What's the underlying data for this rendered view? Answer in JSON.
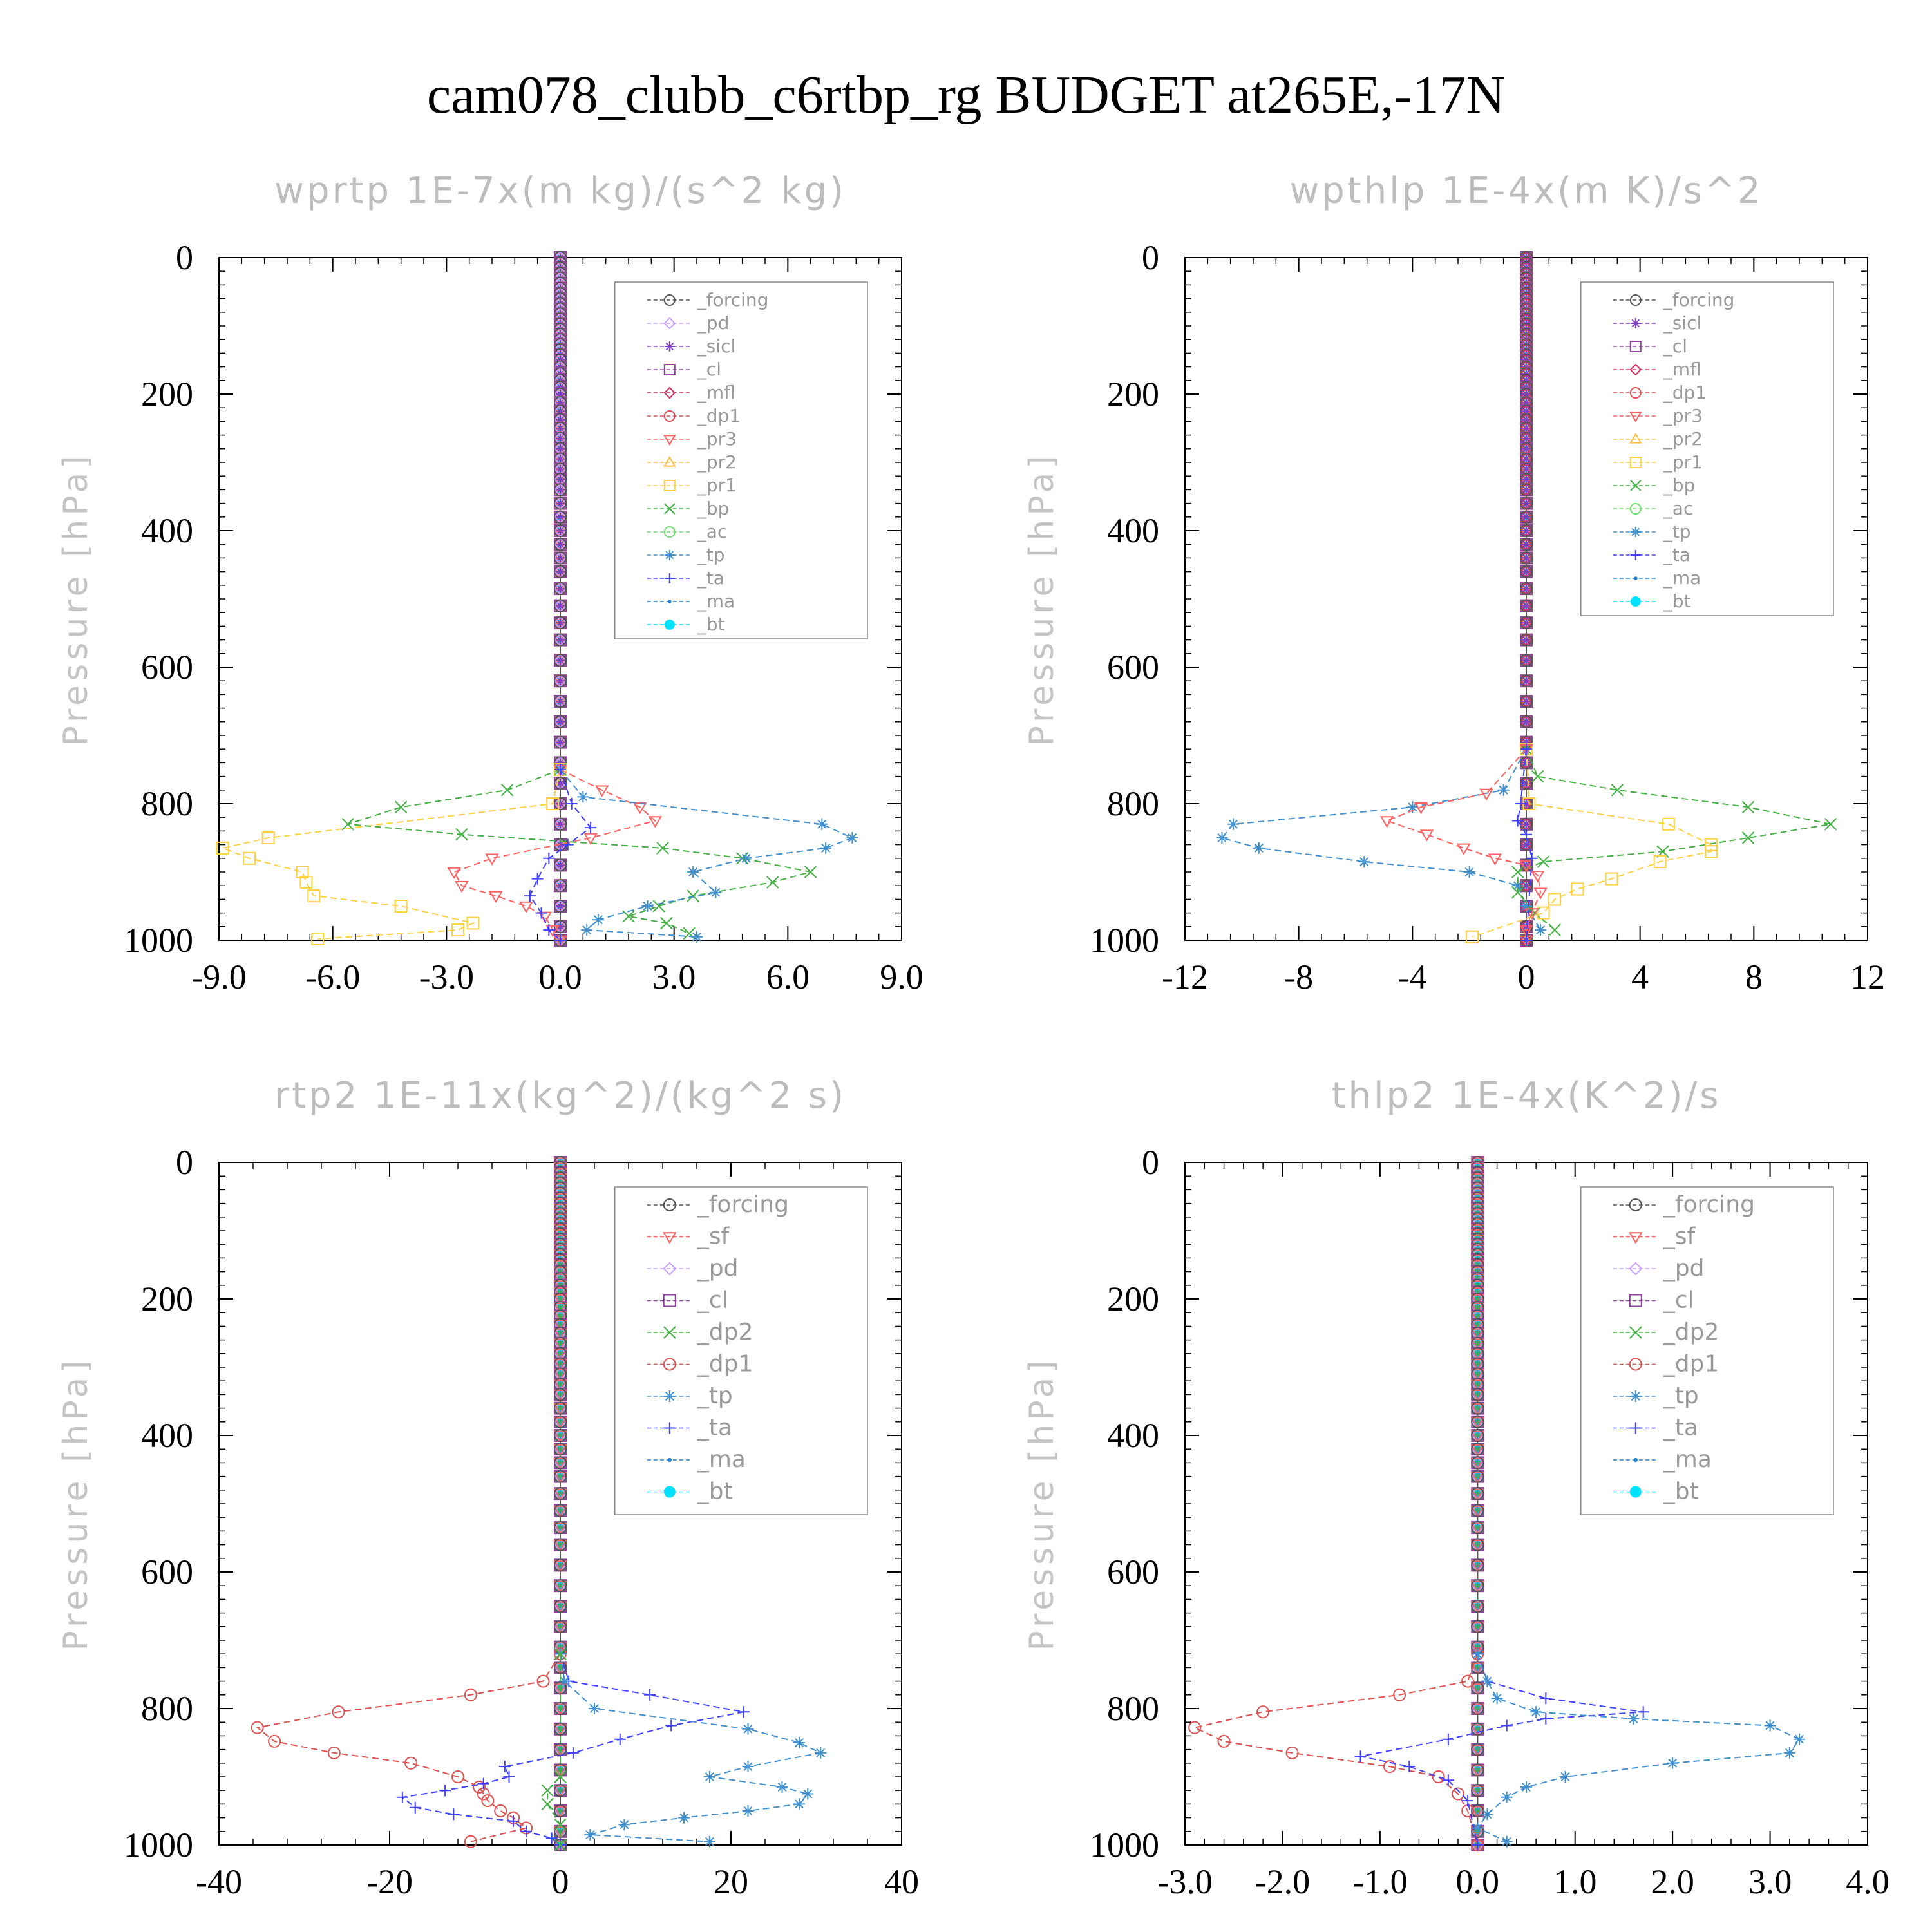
{
  "figure": {
    "title": "cam078_clubb_c6rtbp_rg  BUDGET at265E,-17N",
    "ylabel": "Pressure [hPa]",
    "yticks": [
      0,
      200,
      400,
      600,
      800,
      1000
    ]
  },
  "series_colors": {
    "_forcing": "#555555",
    "_pd": "#c8a0ff",
    "_sicl": "#8040c0",
    "_cl": "#9040a0",
    "_mfl": "#d03060",
    "_dp1": "#e05050",
    "_pr3": "#ff6060",
    "_pr2": "#ffc040",
    "_pr1": "#ffd040",
    "_bp": "#40b040",
    "_ac": "#70e070",
    "_tp": "#4090d0",
    "_ta": "#4040ff",
    "_ma": "#2080d0",
    "_bt": "#00e0ff",
    "_sf": "#ff6060",
    "_dp2": "#40b040"
  },
  "chart_data": [
    {
      "type": "line",
      "title": "wprtp  1E-7x(m kg)/(s^2 kg)",
      "ylabel": "Pressure [hPa]",
      "xlim": [
        -9,
        9
      ],
      "ylim": [
        1000,
        0
      ],
      "xticks": [
        "-9.0",
        "-6.0",
        "-3.0",
        "0.0",
        "3.0",
        "6.0",
        "9.0"
      ],
      "xtick_values": [
        -9,
        -6,
        -3,
        0,
        3,
        6,
        9
      ],
      "legend_position": "top-right",
      "legend": [
        "_forcing",
        "_pd",
        "_sicl",
        "_cl",
        "_mfl",
        "_dp1",
        "_pr3",
        "_pr2",
        "_pr1",
        "_bp",
        "_ac",
        "_tp",
        "_ta",
        "_ma",
        "_bt"
      ],
      "series": [
        {
          "name": "_pr1",
          "points": [
            [
              0,
              750
            ],
            [
              -0.2,
              800
            ],
            [
              -7.7,
              850
            ],
            [
              -8.9,
              865
            ],
            [
              -8.2,
              880
            ],
            [
              -6.8,
              900
            ],
            [
              -6.7,
              915
            ],
            [
              -6.5,
              935
            ],
            [
              -4.2,
              950
            ],
            [
              -2.3,
              975
            ],
            [
              -2.7,
              985
            ],
            [
              -6.4,
              998
            ]
          ]
        },
        {
          "name": "_bp",
          "points": [
            [
              0,
              750
            ],
            [
              -1.4,
              780
            ],
            [
              -4.2,
              805
            ],
            [
              -5.6,
              830
            ],
            [
              -2.6,
              845
            ],
            [
              2.7,
              865
            ],
            [
              4.8,
              880
            ],
            [
              6.6,
              900
            ],
            [
              5.6,
              915
            ],
            [
              3.5,
              935
            ],
            [
              2.6,
              950
            ],
            [
              1.8,
              965
            ],
            [
              2.8,
              975
            ],
            [
              3.4,
              990
            ]
          ]
        },
        {
          "name": "_pr3",
          "points": [
            [
              0,
              750
            ],
            [
              1.1,
              780
            ],
            [
              2.1,
              805
            ],
            [
              2.5,
              825
            ],
            [
              0.8,
              850
            ],
            [
              -1.8,
              880
            ],
            [
              -2.8,
              900
            ],
            [
              -2.6,
              920
            ],
            [
              -1.7,
              935
            ],
            [
              -0.9,
              950
            ],
            [
              -0.4,
              965
            ],
            [
              -0.2,
              985
            ],
            [
              0,
              1000
            ]
          ]
        },
        {
          "name": "_tp",
          "points": [
            [
              0,
              750
            ],
            [
              0.6,
              790
            ],
            [
              6.9,
              830
            ],
            [
              7.7,
              850
            ],
            [
              7.0,
              865
            ],
            [
              4.9,
              880
            ],
            [
              3.5,
              900
            ],
            [
              4.1,
              930
            ],
            [
              2.3,
              950
            ],
            [
              1.0,
              970
            ],
            [
              0.7,
              985
            ],
            [
              3.6,
              995
            ]
          ]
        },
        {
          "name": "_ta",
          "points": [
            [
              0,
              750
            ],
            [
              0.3,
              800
            ],
            [
              0.8,
              835
            ],
            [
              0.2,
              860
            ],
            [
              -0.3,
              880
            ],
            [
              -0.6,
              910
            ],
            [
              -0.8,
              935
            ],
            [
              -0.5,
              960
            ],
            [
              -0.3,
              985
            ],
            [
              0,
              1000
            ]
          ]
        }
      ]
    },
    {
      "type": "line",
      "title": "wpthlp  1E-4x(m K)/s^2",
      "ylabel": "Pressure [hPa]",
      "xlim": [
        -12,
        12
      ],
      "ylim": [
        1000,
        0
      ],
      "xticks": [
        "-12",
        "-8",
        "-4",
        "0",
        "4",
        "8",
        "12"
      ],
      "xtick_values": [
        -12,
        -8,
        -4,
        0,
        4,
        8,
        12
      ],
      "legend_position": "top-right",
      "legend": [
        "_forcing",
        "_sicl",
        "_cl",
        "_mfl",
        "_dp1",
        "_pr3",
        "_pr2",
        "_pr1",
        "_bp",
        "_ac",
        "_tp",
        "_ta",
        "_ma",
        "_bt"
      ],
      "series": [
        {
          "name": "_tp",
          "points": [
            [
              0,
              720
            ],
            [
              -0.8,
              780
            ],
            [
              -4.0,
              805
            ],
            [
              -10.3,
              830
            ],
            [
              -10.7,
              850
            ],
            [
              -9.4,
              865
            ],
            [
              -5.7,
              885
            ],
            [
              -2.0,
              900
            ],
            [
              -0.3,
              920
            ],
            [
              0,
              950
            ],
            [
              0.5,
              985
            ]
          ]
        },
        {
          "name": "_bp",
          "points": [
            [
              0,
              720
            ],
            [
              0.4,
              760
            ],
            [
              3.2,
              780
            ],
            [
              7.8,
              805
            ],
            [
              10.7,
              830
            ],
            [
              7.8,
              850
            ],
            [
              4.8,
              870
            ],
            [
              0.6,
              885
            ],
            [
              -0.3,
              900
            ],
            [
              -0.3,
              930
            ],
            [
              0.3,
              960
            ],
            [
              1.0,
              985
            ]
          ]
        },
        {
          "name": "_pr1",
          "points": [
            [
              0,
              720
            ],
            [
              0.1,
              800
            ],
            [
              5.0,
              830
            ],
            [
              6.5,
              860
            ],
            [
              6.5,
              870
            ],
            [
              4.7,
              885
            ],
            [
              3.0,
              910
            ],
            [
              1.8,
              925
            ],
            [
              1.0,
              940
            ],
            [
              0.6,
              960
            ],
            [
              -1.9,
              995
            ]
          ]
        },
        {
          "name": "_pr3",
          "points": [
            [
              0,
              720
            ],
            [
              -1.4,
              785
            ],
            [
              -3.7,
              805
            ],
            [
              -4.9,
              825
            ],
            [
              -3.5,
              845
            ],
            [
              -2.2,
              865
            ],
            [
              -1.1,
              880
            ],
            [
              0,
              890
            ],
            [
              0.4,
              905
            ],
            [
              0.5,
              930
            ],
            [
              0.2,
              960
            ],
            [
              0,
              985
            ],
            [
              0,
              1000
            ]
          ]
        },
        {
          "name": "_ta",
          "points": [
            [
              0,
              720
            ],
            [
              -0.2,
              800
            ],
            [
              -0.3,
              825
            ],
            [
              0,
              845
            ],
            [
              0.2,
              880
            ],
            [
              0,
              1000
            ]
          ]
        }
      ]
    },
    {
      "type": "line",
      "title": "rtp2  1E-11x(kg^2)/(kg^2 s)",
      "ylabel": "Pressure [hPa]",
      "xlim": [
        -40,
        40
      ],
      "ylim": [
        1000,
        0
      ],
      "xticks": [
        "-40",
        "-20",
        "0",
        "20",
        "40"
      ],
      "xtick_values": [
        -40,
        -20,
        0,
        20,
        40
      ],
      "legend_position": "top-right",
      "legend": [
        "_forcing",
        "_sf",
        "_pd",
        "_cl",
        "_dp2",
        "_dp1",
        "_tp",
        "_ta",
        "_ma",
        "_bt"
      ],
      "series": [
        {
          "name": "_dp1",
          "points": [
            [
              0,
              720
            ],
            [
              -2,
              760
            ],
            [
              -10.5,
              780
            ],
            [
              -26,
              805
            ],
            [
              -35.5,
              828
            ],
            [
              -33.5,
              848
            ],
            [
              -26.5,
              865
            ],
            [
              -17.5,
              880
            ],
            [
              -12,
              900
            ],
            [
              -9.5,
              915
            ],
            [
              -9,
              925
            ],
            [
              -8.5,
              935
            ],
            [
              -7,
              950
            ],
            [
              -5.5,
              960
            ],
            [
              -4,
              975
            ],
            [
              -10.5,
              995
            ]
          ]
        },
        {
          "name": "_ta",
          "points": [
            [
              0,
              720
            ],
            [
              1,
              760
            ],
            [
              10.5,
              780
            ],
            [
              21.5,
              805
            ],
            [
              13,
              825
            ],
            [
              7,
              845
            ],
            [
              1.5,
              865
            ],
            [
              -6.5,
              885
            ],
            [
              -6,
              900
            ],
            [
              -9,
              910
            ],
            [
              -13.5,
              920
            ],
            [
              -18.5,
              930
            ],
            [
              -17,
              945
            ],
            [
              -12.5,
              955
            ],
            [
              -5.5,
              965
            ],
            [
              -4,
              980
            ],
            [
              -1,
              990
            ],
            [
              0,
              1000
            ]
          ]
        },
        {
          "name": "_tp",
          "points": [
            [
              0,
              720
            ],
            [
              0.5,
              760
            ],
            [
              4,
              800
            ],
            [
              22,
              830
            ],
            [
              28,
              850
            ],
            [
              30.5,
              865
            ],
            [
              22,
              885
            ],
            [
              17.5,
              900
            ],
            [
              26,
              915
            ],
            [
              29,
              925
            ],
            [
              28,
              940
            ],
            [
              22,
              950
            ],
            [
              14.5,
              960
            ],
            [
              7.5,
              970
            ],
            [
              3.5,
              985
            ],
            [
              17.5,
              995
            ]
          ]
        },
        {
          "name": "_dp2",
          "points": [
            [
              0,
              720
            ],
            [
              0,
              900
            ],
            [
              -1.5,
              920
            ],
            [
              -1.5,
              940
            ],
            [
              0,
              970
            ],
            [
              0,
              1000
            ]
          ]
        }
      ]
    },
    {
      "type": "line",
      "title": "thlp2  1E-4x(K^2)/s",
      "ylabel": "Pressure [hPa]",
      "xlim": [
        -3,
        4
      ],
      "ylim": [
        1000,
        0
      ],
      "xticks": [
        "-3.0",
        "-2.0",
        "-1.0",
        "0.0",
        "1.0",
        "2.0",
        "3.0",
        "4.0"
      ],
      "xtick_values": [
        -3,
        -2,
        -1,
        0,
        1,
        2,
        3,
        4
      ],
      "legend_position": "top-right",
      "legend": [
        "_forcing",
        "_sf",
        "_pd",
        "_cl",
        "_dp2",
        "_dp1",
        "_tp",
        "_ta",
        "_ma",
        "_bt"
      ],
      "series": [
        {
          "name": "_dp1",
          "points": [
            [
              0,
              720
            ],
            [
              -0.1,
              760
            ],
            [
              -0.8,
              780
            ],
            [
              -2.2,
              805
            ],
            [
              -2.9,
              828
            ],
            [
              -2.6,
              848
            ],
            [
              -1.9,
              865
            ],
            [
              -0.9,
              885
            ],
            [
              -0.4,
              900
            ],
            [
              -0.2,
              925
            ],
            [
              -0.1,
              950
            ],
            [
              0,
              1000
            ]
          ]
        },
        {
          "name": "_ta",
          "points": [
            [
              0,
              720
            ],
            [
              0.1,
              760
            ],
            [
              0.7,
              785
            ],
            [
              1.7,
              805
            ],
            [
              0.7,
              815
            ],
            [
              0.3,
              825
            ],
            [
              -0.3,
              845
            ],
            [
              -1.2,
              870
            ],
            [
              -0.7,
              885
            ],
            [
              -0.3,
              905
            ],
            [
              -0.1,
              935
            ],
            [
              0,
              1000
            ]
          ]
        },
        {
          "name": "_tp",
          "points": [
            [
              0,
              720
            ],
            [
              0.1,
              760
            ],
            [
              0.2,
              785
            ],
            [
              0.6,
              805
            ],
            [
              1.6,
              815
            ],
            [
              3.0,
              825
            ],
            [
              3.3,
              845
            ],
            [
              3.2,
              865
            ],
            [
              2.0,
              880
            ],
            [
              0.9,
              900
            ],
            [
              0.5,
              915
            ],
            [
              0.3,
              930
            ],
            [
              0.1,
              955
            ],
            [
              0,
              975
            ],
            [
              0.3,
              995
            ]
          ]
        }
      ]
    }
  ]
}
